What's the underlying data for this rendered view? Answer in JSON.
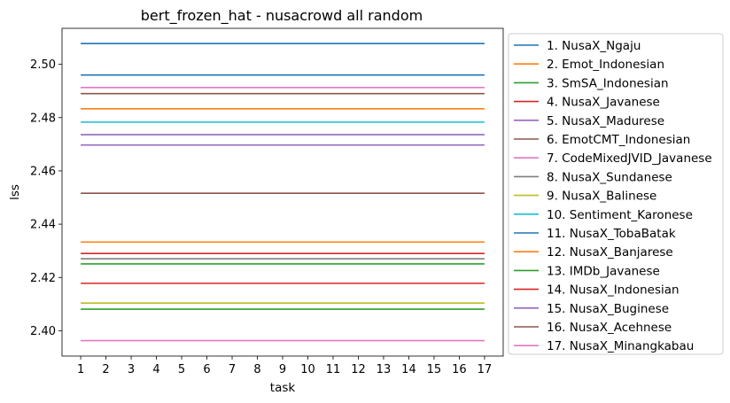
{
  "chart_data": {
    "type": "line",
    "title": "bert_frozen_hat - nusacrowd all random",
    "xlabel": "task",
    "ylabel": "lss",
    "x": [
      1,
      2,
      3,
      4,
      5,
      6,
      7,
      8,
      9,
      10,
      11,
      12,
      13,
      14,
      15,
      16,
      17
    ],
    "xlim": [
      0.26,
      17.74
    ],
    "ylim": [
      2.3905,
      2.5135
    ],
    "yticks": [
      2.4,
      2.42,
      2.44,
      2.46,
      2.48,
      2.5
    ],
    "ytick_labels": [
      "2.40",
      "2.42",
      "2.44",
      "2.46",
      "2.48",
      "2.50"
    ],
    "grid": false,
    "legend_placement": "outside-right",
    "series": [
      {
        "name": "1. NusaX_Ngaju",
        "value": 2.5078,
        "color": "#1f77b4"
      },
      {
        "name": "2. Emot_Indonesian",
        "value": 2.4833,
        "color": "#ff7f0e"
      },
      {
        "name": "3. SmSA_Indonesian",
        "value": 2.4251,
        "color": "#2ca02c"
      },
      {
        "name": "4. NusaX_Javanese",
        "value": 2.429,
        "color": "#d62728"
      },
      {
        "name": "5. NusaX_Madurese",
        "value": 2.4697,
        "color": "#9467bd"
      },
      {
        "name": "6. EmotCMT_Indonesian",
        "value": 2.4516,
        "color": "#8c564b"
      },
      {
        "name": "7. CodeMixedJVID_Javanese",
        "value": 2.4913,
        "color": "#e377c2"
      },
      {
        "name": "8. NusaX_Sundanese",
        "value": 2.427,
        "color": "#7f7f7f"
      },
      {
        "name": "9. NusaX_Balinese",
        "value": 2.4104,
        "color": "#bcbd22"
      },
      {
        "name": "10. Sentiment_Karonese",
        "value": 2.4783,
        "color": "#17becf"
      },
      {
        "name": "11. NusaX_TobaBatak",
        "value": 2.496,
        "color": "#1f77b4"
      },
      {
        "name": "12. NusaX_Banjarese",
        "value": 2.4333,
        "color": "#ff7f0e"
      },
      {
        "name": "13. IMDb_Javanese",
        "value": 2.4081,
        "color": "#2ca02c"
      },
      {
        "name": "14. NusaX_Indonesian",
        "value": 2.4178,
        "color": "#d62728"
      },
      {
        "name": "15. NusaX_Buginese",
        "value": 2.4736,
        "color": "#9467bd"
      },
      {
        "name": "16. NusaX_Acehnese",
        "value": 2.489,
        "color": "#8c564b"
      },
      {
        "name": "17. NusaX_Minangkabau",
        "value": 2.3963,
        "color": "#e377c2"
      }
    ]
  }
}
